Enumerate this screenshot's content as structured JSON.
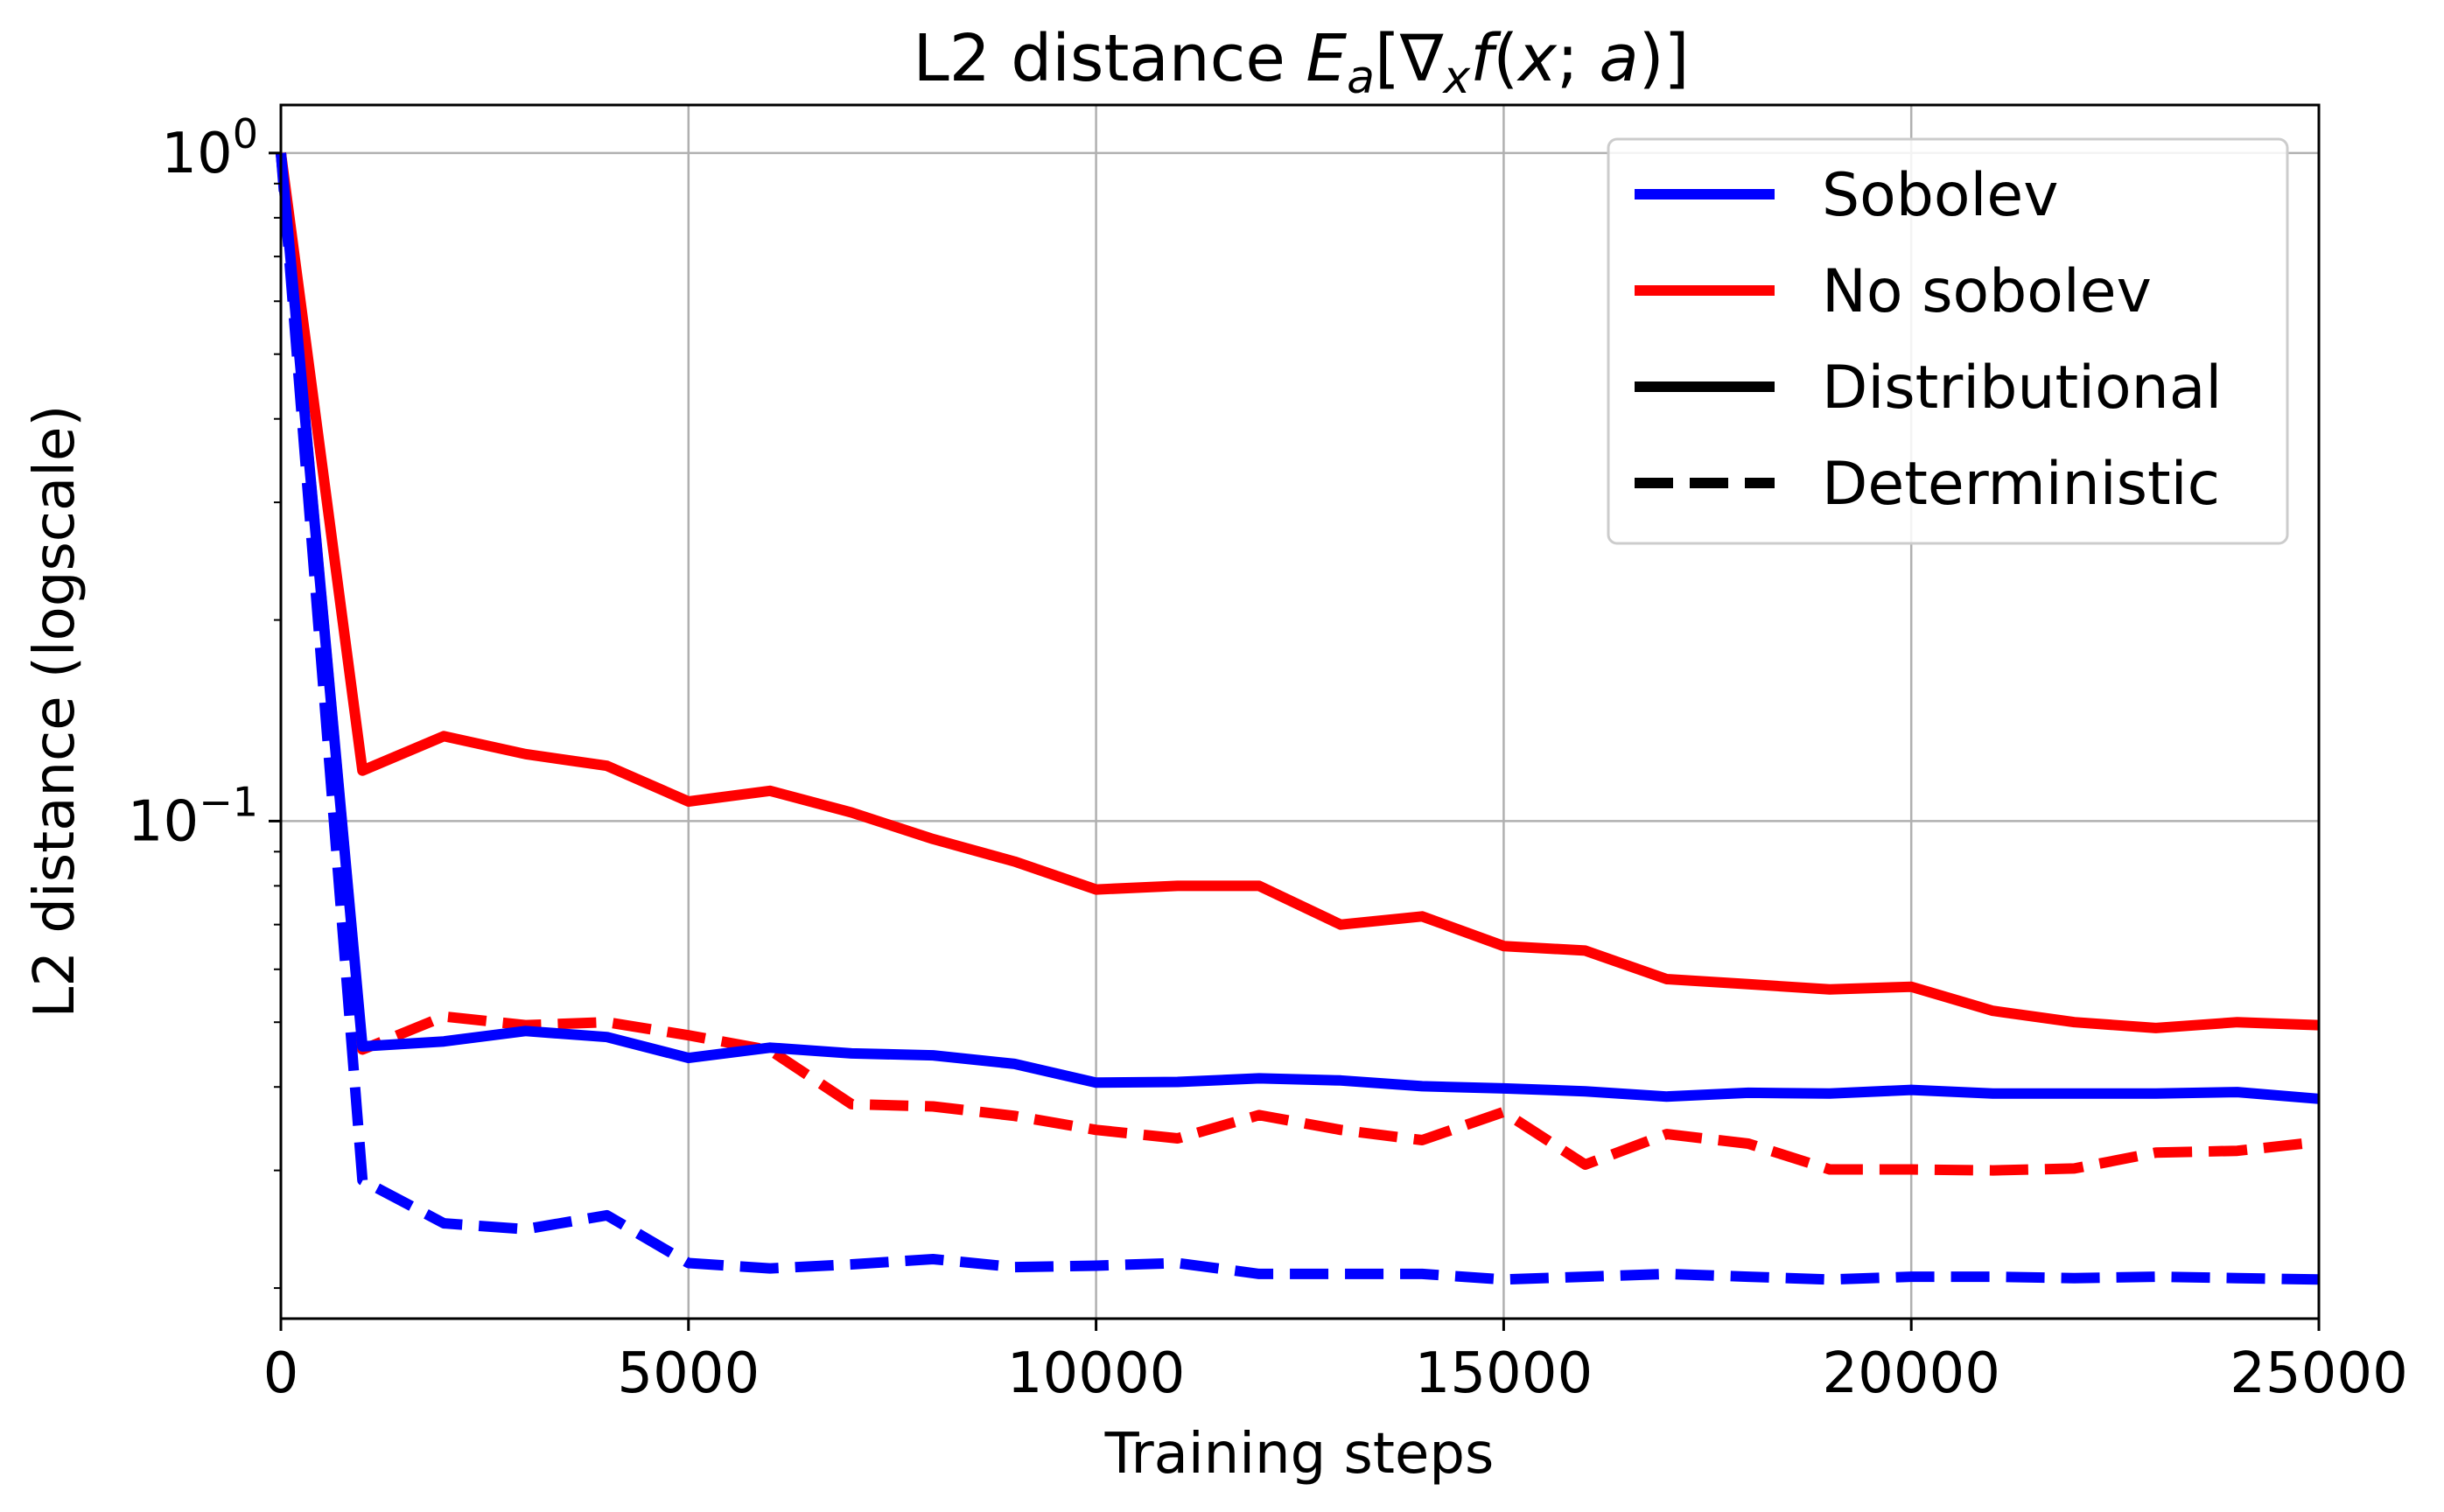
{
  "chart_data": {
    "type": "line",
    "title": {
      "prefix": "L2 distance ",
      "E": "E",
      "a_sub": "a",
      "open": "[",
      "nabla": "∇",
      "x_sub": "x",
      "f": "f",
      "open_paren": "(",
      "x": "x",
      "semi": "; ",
      "a": "a",
      "close": ")]"
    },
    "xlabel": "Training steps",
    "ylabel": "L2 distance (logscale)",
    "xlim": [
      0,
      25000
    ],
    "ylim": [
      0.018,
      1.18
    ],
    "yscale": "log",
    "grid": true,
    "legend_position": "top-right",
    "x_ticks": [
      {
        "value": 0,
        "label": "0"
      },
      {
        "value": 5000,
        "label": "5000"
      },
      {
        "value": 10000,
        "label": "10000"
      },
      {
        "value": 15000,
        "label": "15000"
      },
      {
        "value": 20000,
        "label": "20000"
      },
      {
        "value": 25000,
        "label": "25000"
      }
    ],
    "y_ticks": [
      {
        "value": 1,
        "base": "10",
        "exp": "0"
      },
      {
        "value": 0.1,
        "base": "10",
        "exp": "−1"
      }
    ],
    "legend": [
      {
        "label": "Sobolev",
        "color": "#0000ff",
        "dash": "solid"
      },
      {
        "label": "No sobolev",
        "color": "#ff0000",
        "dash": "solid"
      },
      {
        "label": "Distributional",
        "color": "#000000",
        "dash": "solid"
      },
      {
        "label": "Deterministic",
        "color": "#000000",
        "dash": "dashed"
      }
    ],
    "x": [
      0,
      1000,
      2000,
      3000,
      4000,
      5000,
      6000,
      7000,
      8000,
      9000,
      10000,
      11000,
      12000,
      13000,
      14000,
      15000,
      16000,
      17000,
      18000,
      19000,
      20000,
      21000,
      22000,
      23000,
      24000,
      25000
    ],
    "series": [
      {
        "name": "Sobolev Distributional",
        "color": "#0000ff",
        "dash": "solid",
        "values": [
          1.0,
          0.046,
          0.0468,
          0.0485,
          0.0475,
          0.0442,
          0.0458,
          0.0449,
          0.0446,
          0.0433,
          0.0406,
          0.0407,
          0.0412,
          0.0409,
          0.0401,
          0.0398,
          0.0394,
          0.0387,
          0.0392,
          0.0391,
          0.0396,
          0.0391,
          0.0391,
          0.0391,
          0.0393,
          0.0384
        ]
      },
      {
        "name": "No sobolev Distributional",
        "color": "#ff0000",
        "dash": "solid",
        "values": [
          1.0,
          0.119,
          0.134,
          0.126,
          0.121,
          0.107,
          0.111,
          0.103,
          0.094,
          0.087,
          0.079,
          0.08,
          0.08,
          0.07,
          0.072,
          0.065,
          0.064,
          0.058,
          0.057,
          0.056,
          0.0565,
          0.052,
          0.05,
          0.049,
          0.05,
          0.0495
        ]
      },
      {
        "name": "Sobolev Deterministic",
        "color": "#0000ff",
        "dash": "dashed",
        "values": [
          1.0,
          0.029,
          0.025,
          0.0245,
          0.0257,
          0.0218,
          0.0214,
          0.0217,
          0.0221,
          0.0215,
          0.0216,
          0.0218,
          0.021,
          0.021,
          0.021,
          0.0206,
          0.0208,
          0.021,
          0.0208,
          0.0206,
          0.0208,
          0.0208,
          0.0207,
          0.0208,
          0.0207,
          0.0206
        ]
      },
      {
        "name": "No sobolev Deterministic",
        "color": "#ff0000",
        "dash": "dashed",
        "values": [
          1.0,
          0.0455,
          0.051,
          0.0495,
          0.05,
          0.0478,
          0.0454,
          0.0377,
          0.0374,
          0.0362,
          0.0345,
          0.0335,
          0.0363,
          0.0345,
          0.0333,
          0.0367,
          0.0306,
          0.034,
          0.0329,
          0.0301,
          0.0301,
          0.03,
          0.0302,
          0.0319,
          0.0321,
          0.0331
        ]
      }
    ]
  }
}
